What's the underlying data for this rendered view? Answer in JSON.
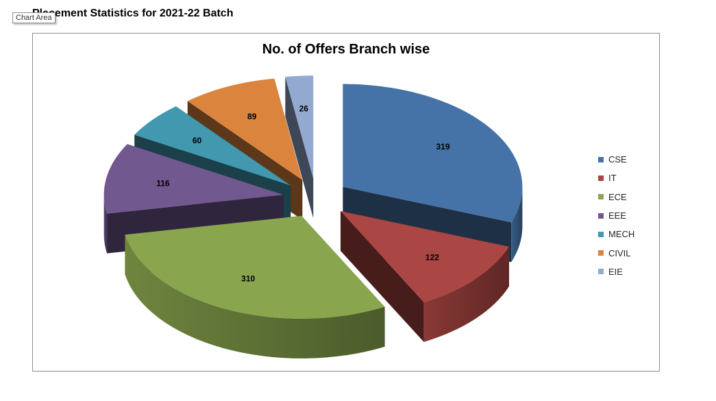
{
  "page": {
    "heading": "Placement Statistics for 2021-22 Batch",
    "tooltip": "Chart Area"
  },
  "chart_data": {
    "type": "pie",
    "title": "No. of Offers Branch wise",
    "style": "3d-exploded",
    "legend_position": "right",
    "categories": [
      "CSE",
      "IT",
      "ECE",
      "EEE",
      "MECH",
      "CIVIL",
      "EIE"
    ],
    "values": [
      319,
      122,
      310,
      116,
      60,
      89,
      26
    ],
    "colors": [
      "#4573A7",
      "#AA4643",
      "#89A54E",
      "#71588F",
      "#4198AF",
      "#DB843D",
      "#93A9CF"
    ]
  }
}
